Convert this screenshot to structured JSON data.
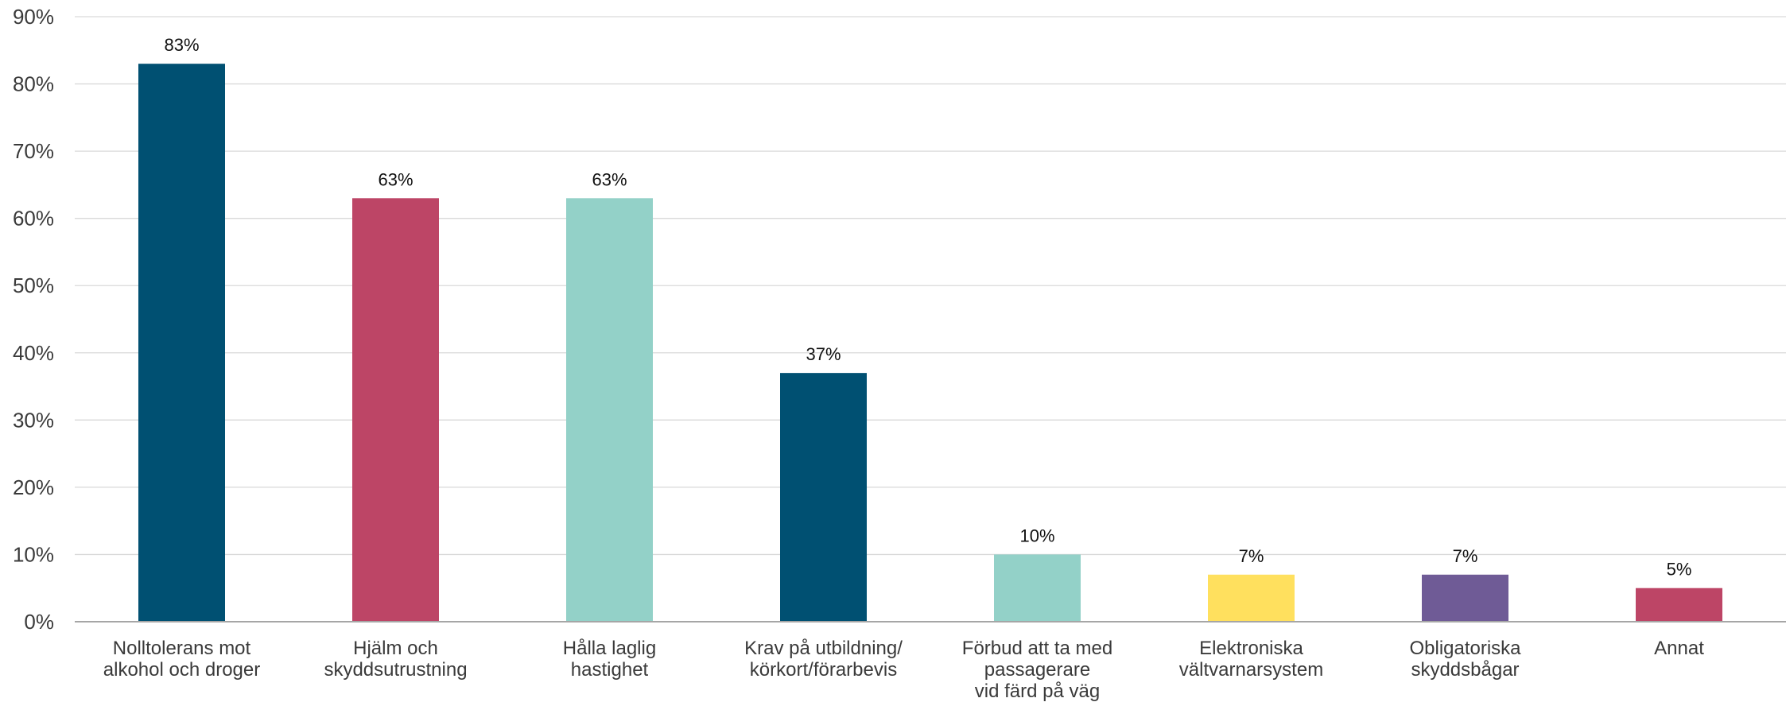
{
  "chart_data": {
    "type": "bar",
    "categories": [
      [
        "Nolltolerans mot",
        "alkohol och droger"
      ],
      [
        "Hjälm och",
        "skyddsutrustning"
      ],
      [
        "Hålla laglig",
        "hastighet"
      ],
      [
        "Krav på utbildning/",
        "körkort/förarbevis"
      ],
      [
        "Förbud att ta med",
        "passagerare",
        "vid färd på väg"
      ],
      [
        "Elektroniska",
        "vältvarnarsystem"
      ],
      [
        "Obligatoriska",
        "skyddsbågar"
      ],
      [
        "Annat"
      ]
    ],
    "values": [
      83,
      63,
      63,
      37,
      10,
      7,
      7,
      5
    ],
    "data_labels": [
      "83%",
      "63%",
      "63%",
      "37%",
      "10%",
      "7%",
      "7%",
      "5%"
    ],
    "colors": [
      "#005072",
      "#bd4566",
      "#93d1c8",
      "#005072",
      "#93d1c8",
      "#ffe05e",
      "#6f5b96",
      "#bd4566"
    ],
    "yticks": [
      0,
      10,
      20,
      30,
      40,
      50,
      60,
      70,
      80,
      90
    ],
    "ytick_labels": [
      "0%",
      "10%",
      "20%",
      "30%",
      "40%",
      "50%",
      "60%",
      "70%",
      "80%",
      "90%"
    ],
    "ylim": [
      0,
      90
    ],
    "grid": true,
    "title": "",
    "xlabel": "",
    "ylabel": ""
  }
}
